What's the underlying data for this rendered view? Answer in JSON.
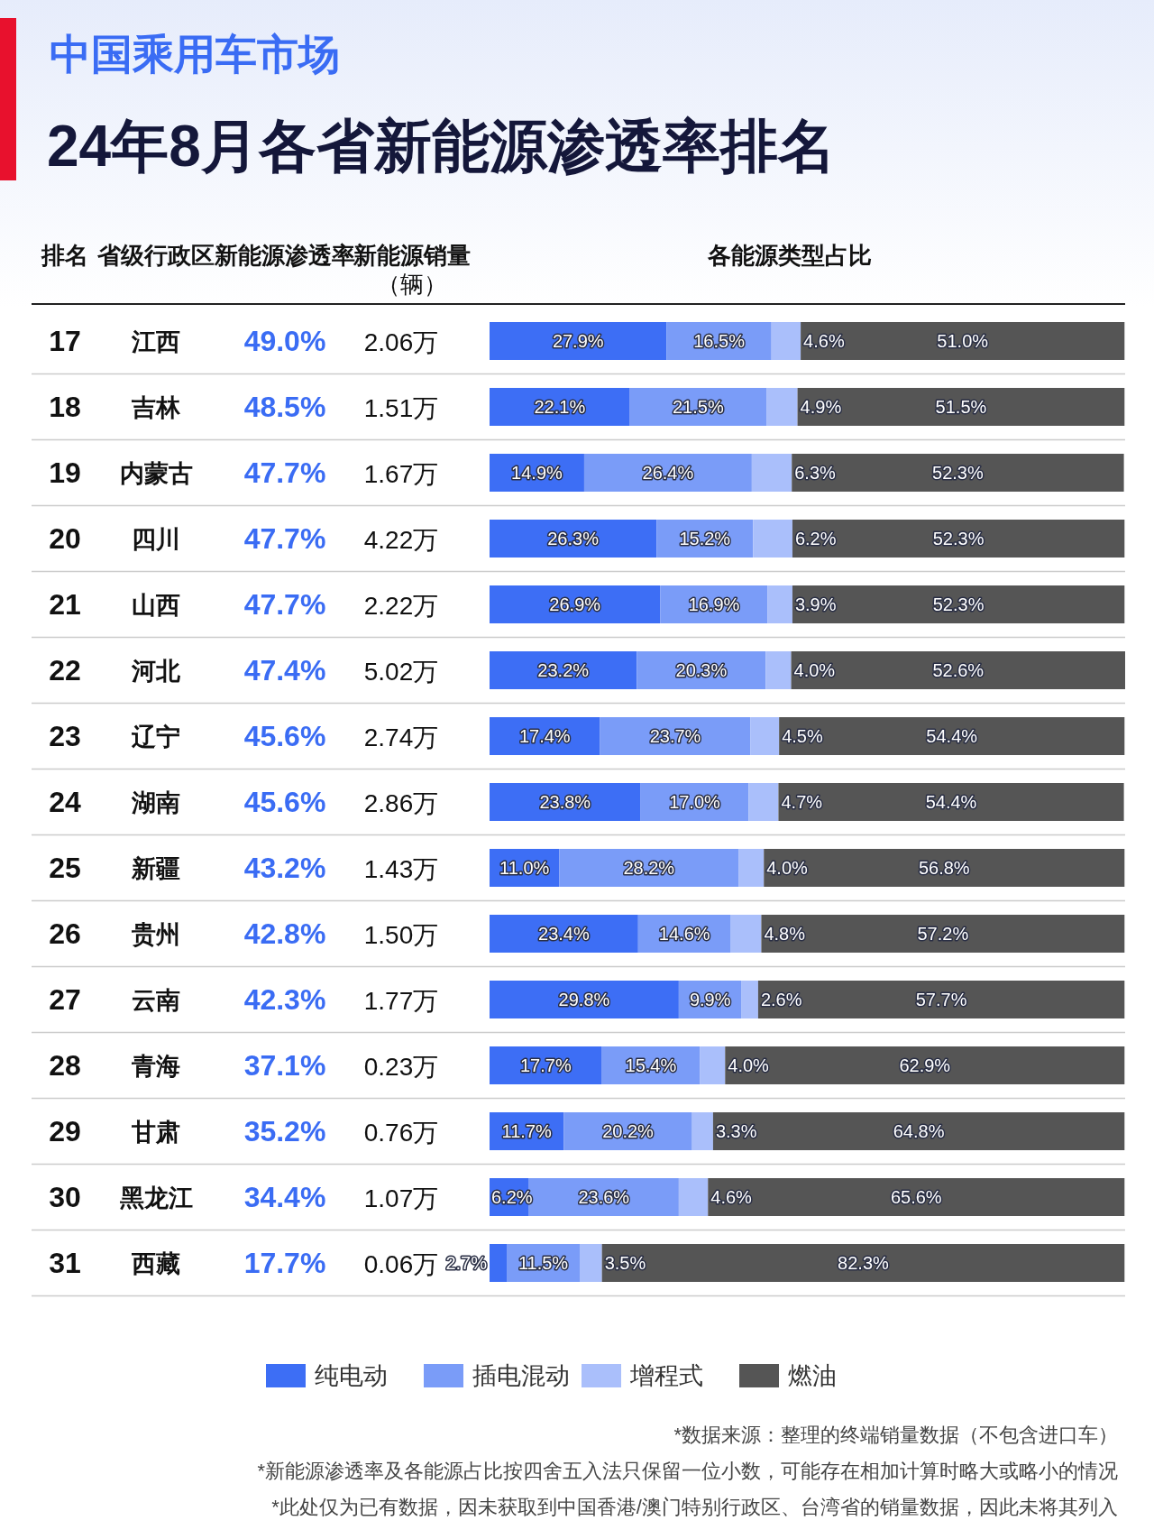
{
  "chart_data": [
    {
      "type": "other",
      "title": "中国乘用车市场",
      "subtitle": "24年8月各省新能源渗透率排名",
      "ylabel": "省级行政区",
      "categories": [
        "江西",
        "吉林",
        "内蒙古",
        "四川",
        "山西",
        "河北",
        "辽宁",
        "湖南",
        "新疆",
        "贵州",
        "云南",
        "青海",
        "甘肃",
        "黑龙江",
        "西藏"
      ],
      "series": [
        {
          "name": "排名",
          "values": [
            17,
            18,
            19,
            20,
            21,
            22,
            23,
            24,
            25,
            26,
            27,
            28,
            29,
            30,
            31
          ],
          "value_labels": [
            "17",
            "18",
            "19",
            "20",
            "21",
            "22",
            "23",
            "24",
            "25",
            "26",
            "27",
            "28",
            "29",
            "30",
            "31"
          ]
        },
        {
          "name": "新能源渗透率",
          "values": [
            49.0,
            48.5,
            47.7,
            47.7,
            47.7,
            47.4,
            45.6,
            45.6,
            43.2,
            42.8,
            42.3,
            37.1,
            35.2,
            34.4,
            17.7
          ],
          "value_labels": [
            "49.0%",
            "48.5%",
            "47.7%",
            "47.7%",
            "47.7%",
            "47.4%",
            "45.6%",
            "45.6%",
            "43.2%",
            "42.8%",
            "42.3%",
            "37.1%",
            "35.2%",
            "34.4%",
            "17.7%"
          ]
        },
        {
          "name": "新能源销量（辆）",
          "values": [
            2.06,
            1.51,
            1.67,
            4.22,
            2.22,
            5.02,
            2.74,
            2.86,
            1.43,
            1.5,
            1.77,
            0.23,
            0.76,
            1.07,
            0.06
          ],
          "value_labels": [
            "2.06万",
            "1.51万",
            "1.67万",
            "4.22万",
            "2.22万",
            "5.02万",
            "2.74万",
            "2.86万",
            "1.43万",
            "1.50万",
            "1.77万",
            "0.23万",
            "0.76万",
            "1.07万",
            "0.06万"
          ]
        }
      ]
    },
    {
      "type": "bar",
      "orientation": "horizontal",
      "stacked": true,
      "title": "各能源类型占比",
      "legend": "bottom",
      "categories": [
        null,
        null,
        null,
        null,
        null,
        null,
        null,
        null,
        null,
        null,
        null,
        null,
        null,
        null,
        null
      ],
      "series": [
        {
          "name": "纯电动",
          "color": "#3d6ef5",
          "values": [
            27.9,
            22.1,
            14.9,
            26.3,
            26.9,
            23.2,
            17.4,
            23.8,
            11.0,
            23.4,
            29.8,
            17.7,
            11.7,
            6.2,
            2.7
          ],
          "value_labels": [
            "27.9%",
            "22.1%",
            "14.9%",
            "26.3%",
            "26.9%",
            "23.2%",
            "17.4%",
            "23.8%",
            "11.0%",
            "23.4%",
            "29.8%",
            "17.7%",
            "11.7%",
            "6.2%",
            "2.7%"
          ]
        },
        {
          "name": "插电混动",
          "color": "#7a9cf8",
          "values": [
            16.5,
            21.5,
            26.4,
            15.2,
            16.9,
            20.3,
            23.7,
            17.0,
            28.2,
            14.6,
            9.9,
            15.4,
            20.2,
            23.6,
            11.5
          ],
          "value_labels": [
            "16.5%",
            "21.5%",
            "26.4%",
            "15.2%",
            "16.9%",
            "20.3%",
            "23.7%",
            "17.0%",
            "28.2%",
            "14.6%",
            "9.9%",
            "15.4%",
            "20.2%",
            "23.6%",
            "11.5%"
          ]
        },
        {
          "name": "增程式",
          "color": "#aabffb",
          "values": [
            4.6,
            4.9,
            6.3,
            6.2,
            3.9,
            4.0,
            4.5,
            4.7,
            4.0,
            4.8,
            2.6,
            4.0,
            3.3,
            4.6,
            3.5
          ],
          "value_labels": [
            "4.6%",
            "4.9%",
            "6.3%",
            "6.2%",
            "3.9%",
            "4.0%",
            "4.5%",
            "4.7%",
            "4.0%",
            "4.8%",
            "2.6%",
            "4.0%",
            "3.3%",
            "4.6%",
            "3.5%"
          ]
        },
        {
          "name": "燃油",
          "color": "#555555",
          "values": [
            51.0,
            51.5,
            52.3,
            52.3,
            52.3,
            52.6,
            54.4,
            54.4,
            56.8,
            57.2,
            57.7,
            62.9,
            64.8,
            65.6,
            82.3
          ],
          "value_labels": [
            "51.0%",
            "51.5%",
            "52.3%",
            "52.3%",
            "52.3%",
            "52.6%",
            "54.4%",
            "54.4%",
            "56.8%",
            "57.2%",
            "57.7%",
            "62.9%",
            "64.8%",
            "65.6%",
            "82.3%"
          ]
        }
      ],
      "annotations": [
        "*数据来源：整理的终端销量数据（不包含进口车）",
        "*新能源渗透率及各能源占比按四舍五入法只保留一位小数，可能存在相加计算时略大或略小的情况",
        "*此处仅为已有数据，因未获取到中国香港/澳门特别行政区、台湾省的销量数据，因此未将其列入"
      ]
    }
  ]
}
